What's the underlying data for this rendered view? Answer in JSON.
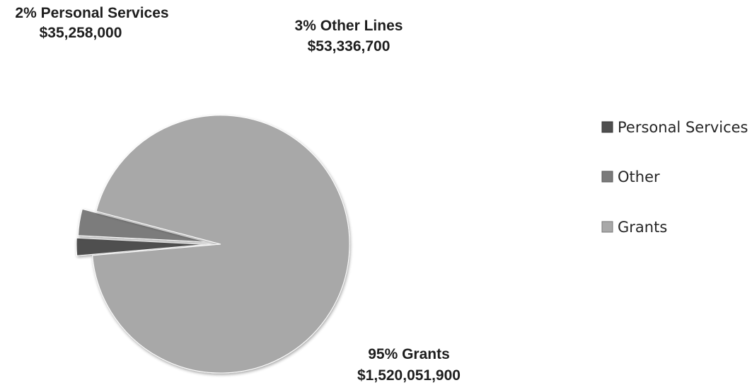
{
  "chart_data": {
    "type": "pie",
    "exploded": true,
    "slices": [
      {
        "legend": "Personal Services",
        "percent_label": "2%",
        "category_label": "Personal Services",
        "amount_label": "$35,258,000",
        "value": 35258000,
        "color": "#4f4f4f"
      },
      {
        "legend": "Other",
        "percent_label": "3%",
        "category_label": "Other Lines",
        "amount_label": "$53,336,700",
        "value": 53336700,
        "color": "#7b7b7b"
      },
      {
        "legend": "Grants",
        "percent_label": "95%",
        "category_label": "Grants",
        "amount_label": "$1,520,051,900",
        "value": 1520051900,
        "color": "#a8a8a8"
      }
    ],
    "legend_position": "right"
  }
}
